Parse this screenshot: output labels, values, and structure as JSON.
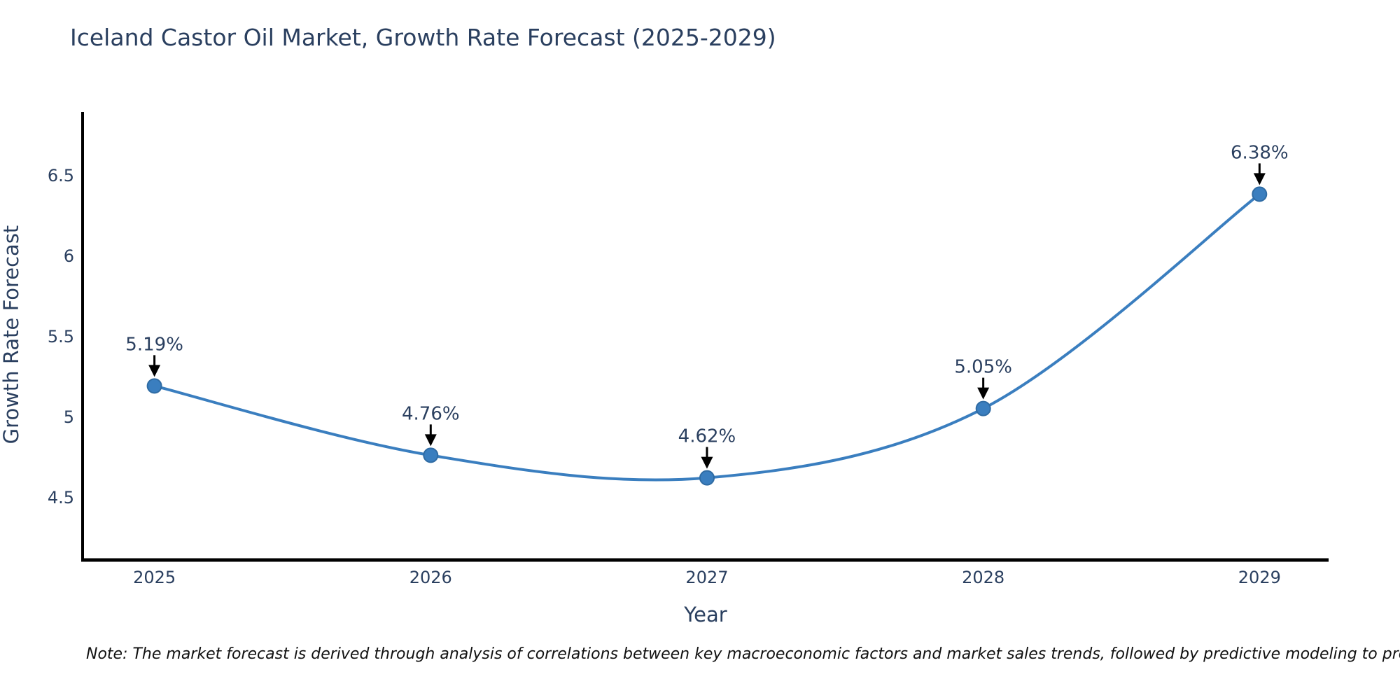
{
  "title": {
    "text": "Iceland Castor Oil Market, Growth Rate Forecast (2025-2029)"
  },
  "note": {
    "text": "Note: The market forecast is derived through analysis of correlations between key macroeconomic factors and market sales trends, followed by predictive modeling to project future sales"
  },
  "chart_data": {
    "type": "line",
    "title": "Iceland Castor Oil Market, Growth Rate Forecast (2025-2029)",
    "xlabel": "Year",
    "ylabel": "Growth Rate Forecast",
    "x": [
      2025,
      2026,
      2027,
      2028,
      2029
    ],
    "categories": [
      "2025",
      "2026",
      "2027",
      "2028",
      "2029"
    ],
    "series": [
      {
        "name": "Growth Rate Forecast",
        "values": [
          5.19,
          4.76,
          4.62,
          5.05,
          6.38
        ]
      }
    ],
    "point_labels": [
      "5.19%",
      "4.76%",
      "4.62%",
      "5.05%",
      "6.38%"
    ],
    "xlim": [
      2024.74,
      2029.25
    ],
    "ylim": [
      4.11,
      6.89
    ],
    "yticks": [
      4.5,
      5,
      5.5,
      6,
      6.5
    ],
    "grid": false,
    "legend": "none",
    "line_shape": "spline",
    "marker_size": 10,
    "line_width": 4,
    "colors": {
      "line": "#3a7ebf",
      "marker_fill": "#3a7ebf",
      "marker_edge": "#2f6ba3",
      "axis_line": "#000000",
      "tick_text": "#2a3f5f",
      "annotation_text": "#2a3f5f",
      "annotation_arrow": "#000000"
    }
  }
}
